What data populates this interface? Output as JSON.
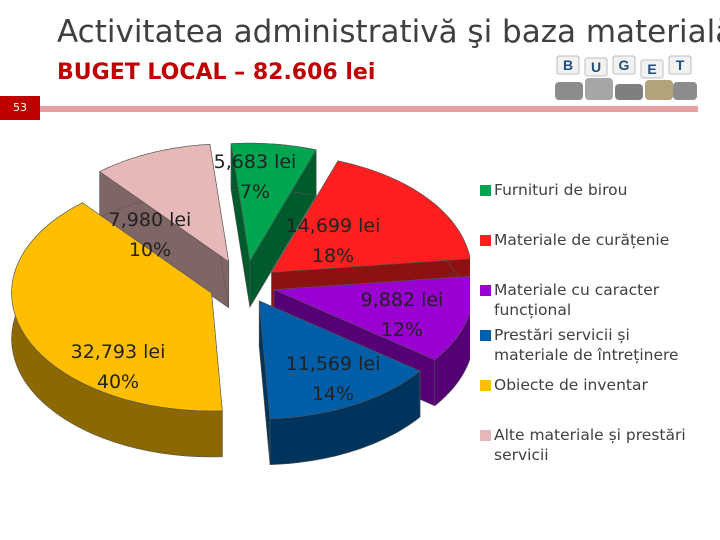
{
  "header": {
    "title": "Activitatea administrativă şi baza materială",
    "subtitle": "BUGET LOCAL – 82.606 lei",
    "slide_number": "53",
    "logo_letters": [
      "B",
      "U",
      "G",
      "E",
      "T"
    ]
  },
  "chart_data": {
    "type": "pie",
    "style": "3d-exploded",
    "legend_position": "right",
    "slices": [
      {
        "name": "Furnituri de birou",
        "value": 5683,
        "value_label": "5,683 lei",
        "percent_label": "7%",
        "color": "#00a550"
      },
      {
        "name": "Materiale de curățenie",
        "value": 14699,
        "value_label": "14,699 lei",
        "percent_label": "18%",
        "color": "#ff1f1f"
      },
      {
        "name": "Materiale cu caracter funcțional",
        "value": 9882,
        "value_label": "9,882 lei",
        "percent_label": "12%",
        "color": "#9b00d3"
      },
      {
        "name": "Prestări servicii și materiale de întreținere",
        "value": 11569,
        "value_label": "11,569 lei",
        "percent_label": "14%",
        "color": "#005ea8"
      },
      {
        "name": "Obiecte de inventar",
        "value": 32793,
        "value_label": "32,793 lei",
        "percent_label": "40%",
        "color": "#ffbf00"
      },
      {
        "name": "Alte materiale și prestări servicii",
        "value": 7980,
        "value_label": "7,980 lei",
        "percent_label": "10%",
        "color": "#e6b9b8"
      }
    ]
  }
}
